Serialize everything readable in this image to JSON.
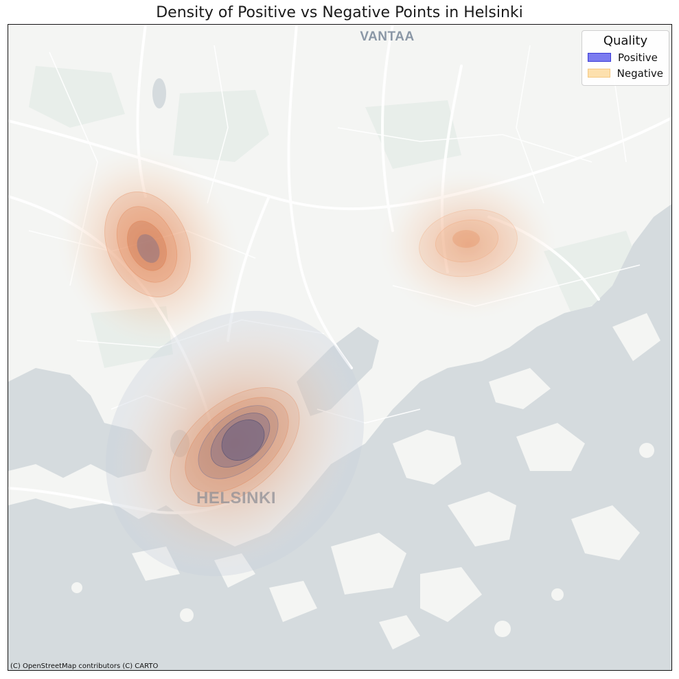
{
  "title": "Density of Positive vs Negative Points in Helsinki",
  "map": {
    "labels": [
      {
        "key": "vantaa",
        "text": "VANTAA"
      },
      {
        "key": "helsinki",
        "text": "HELSINKI"
      }
    ],
    "attribution": "(C) OpenStreetMap contributors (C) CARTO",
    "colors": {
      "land": "#f4f5f3",
      "water": "#d5dbde",
      "park": "#e8eeea",
      "road": "#ffffff",
      "label": "#8a97a6"
    }
  },
  "legend": {
    "title": "Quality",
    "items": [
      {
        "label": "Positive",
        "color": "#7b7bf0",
        "border": "#3b3bd6"
      },
      {
        "label": "Negative",
        "color": "#fde0ad",
        "border": "#f5c982"
      }
    ]
  },
  "density": {
    "negative_color": "#f3a36b",
    "positive_color": "#6f6f9a",
    "clusters": [
      {
        "name": "north-west",
        "quality": "negative",
        "strength": 0.9
      },
      {
        "name": "north-east",
        "quality": "negative",
        "strength": 0.55
      },
      {
        "name": "central",
        "quality": "both",
        "strength": 1.0
      }
    ]
  }
}
